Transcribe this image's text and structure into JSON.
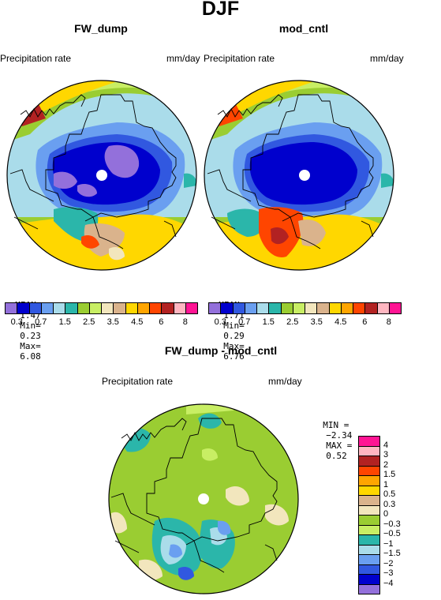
{
  "season_title": "DJF",
  "panels": {
    "left": {
      "title": "FW_dump",
      "variable": "Precipitation rate",
      "units": "mm/day",
      "stats": {
        "mean_label": "MEAN=",
        "mean": "1.47",
        "min_label": "Min=",
        "min": "0.23",
        "max_label": "Max=",
        "max": "6.08"
      }
    },
    "right": {
      "title": "mod_cntl",
      "variable": "Precipitation rate",
      "units": "mm/day",
      "stats": {
        "mean_label": "MEAN=",
        "mean": "1.71",
        "min_label": "Min=",
        "min": "0.29",
        "max_label": "Max=",
        "max": "6.76"
      }
    },
    "diff": {
      "title": "FW_dump - mod_cntl",
      "variable": "Precipitation rate",
      "units": "mm/day",
      "stats": {
        "min_label": "MIN =",
        "min": "−2.34",
        "max_label": "MAX =",
        "max": "0.52"
      }
    }
  },
  "precip_colorbar": {
    "colors": [
      "#9370db",
      "#0000cd",
      "#3158e0",
      "#6a9ff0",
      "#aadcea",
      "#2bb6aa",
      "#9acd32",
      "#c8ee64",
      "#f2e6bd",
      "#dab38c",
      "#ffd700",
      "#ffa500",
      "#ff4500",
      "#b22222",
      "#ffb6c1",
      "#ff1493"
    ],
    "labels": [
      "0.3",
      "0.7",
      "1.5",
      "2.5",
      "3.5",
      "4.5",
      "6",
      "8"
    ]
  },
  "diff_colorbar": {
    "colors": [
      "#ff1493",
      "#ffb6c1",
      "#b22222",
      "#ff4500",
      "#ffa500",
      "#ffd700",
      "#dab38c",
      "#f2e6bd",
      "#9acd32",
      "#c8ee64",
      "#2bb6aa",
      "#aadcea",
      "#6a9ff0",
      "#3158e0",
      "#0000cd",
      "#9370db"
    ],
    "labels": [
      "4",
      "3",
      "2",
      "1.5",
      "1",
      "0.5",
      "0.3",
      "0",
      "−0.3",
      "−0.5",
      "−1",
      "−1.5",
      "−2",
      "−3",
      "−4"
    ]
  }
}
